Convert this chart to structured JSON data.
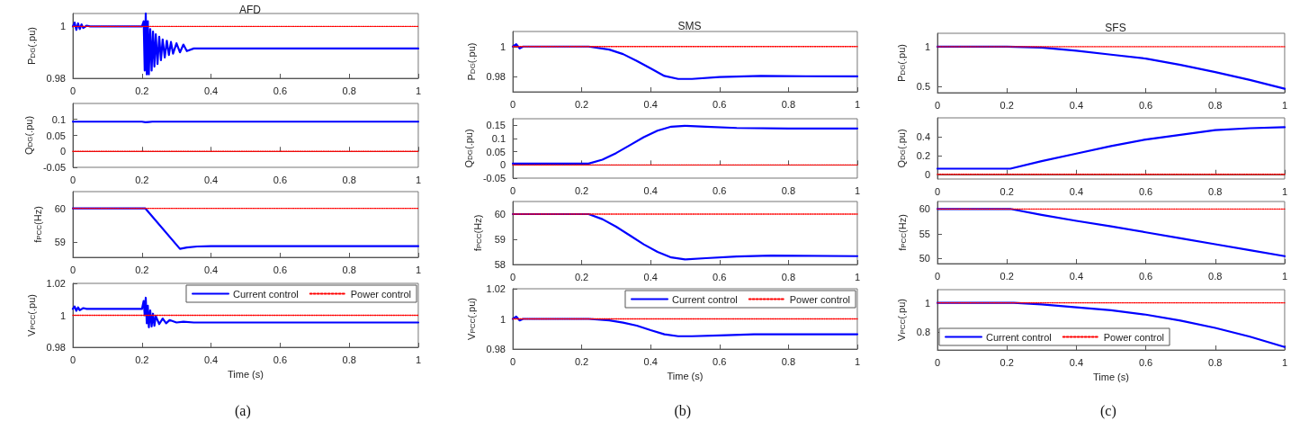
{
  "chart_data": [
    {
      "type": "line",
      "title": "AFD",
      "ylabel": "P$_{DG}$(.pu)",
      "xlim": [
        0,
        1
      ],
      "xticks": [
        0,
        0.2,
        0.4,
        0.6,
        0.8,
        1
      ],
      "ylim": [
        0.98,
        1.005
      ],
      "yticks": [
        0.98,
        1
      ],
      "series": [
        {
          "color": "#0000ff",
          "line_style": "solid",
          "x": [
            0,
            0.005,
            0.01,
            0.015,
            0.02,
            0.025,
            0.03,
            0.04,
            0.05,
            0.2,
            0.205,
            0.208,
            0.211,
            0.214,
            0.217,
            0.22,
            0.224,
            0.228,
            0.232,
            0.236,
            0.24,
            0.245,
            0.25,
            0.255,
            0.26,
            0.266,
            0.272,
            0.278,
            0.284,
            0.29,
            0.3,
            0.31,
            0.32,
            0.33,
            0.35,
            1
          ],
          "values": [
            1,
            1.0015,
            0.9987,
            1.0012,
            0.999,
            1.0008,
            0.9994,
            1.0003,
            1,
            1,
            1.002,
            0.983,
            1.005,
            0.9815,
            1.002,
            0.9815,
            0.999,
            0.983,
            0.998,
            0.9845,
            0.997,
            0.9855,
            0.996,
            0.987,
            0.995,
            0.988,
            0.9945,
            0.989,
            0.994,
            0.9895,
            0.9935,
            0.99,
            0.993,
            0.9905,
            0.9915,
            0.9915
          ]
        },
        {
          "color": "#ff0000",
          "line_style": "dotted",
          "x": [
            0,
            1
          ],
          "values": [
            1,
            1
          ]
        }
      ]
    },
    {
      "type": "line",
      "ylabel": "Q$_{DG}$(.pu)",
      "xlim": [
        0,
        1
      ],
      "xticks": [
        0,
        0.2,
        0.4,
        0.6,
        0.8,
        1
      ],
      "ylim": [
        -0.05,
        0.15
      ],
      "yticks": [
        -0.05,
        0,
        0.05,
        0.1
      ],
      "series": [
        {
          "color": "#0000ff",
          "line_style": "solid",
          "x": [
            0,
            0.2,
            0.21,
            0.22,
            0.23,
            1
          ],
          "values": [
            0.093,
            0.093,
            0.091,
            0.092,
            0.093,
            0.093
          ]
        },
        {
          "color": "#ff0000",
          "line_style": "dotted",
          "x": [
            0,
            1
          ],
          "values": [
            0,
            0
          ]
        }
      ]
    },
    {
      "type": "line",
      "ylabel": "f$_{PCC}$(Hz)",
      "xlim": [
        0,
        1
      ],
      "xticks": [
        0,
        0.2,
        0.4,
        0.6,
        0.8,
        1
      ],
      "ylim": [
        58.55,
        60.5
      ],
      "yticks": [
        59,
        60
      ],
      "series": [
        {
          "color": "#0000ff",
          "line_style": "solid",
          "x": [
            0,
            0.21,
            0.31,
            0.33,
            0.36,
            0.4,
            1
          ],
          "values": [
            60,
            60,
            58.8,
            58.84,
            58.87,
            58.88,
            58.88
          ]
        },
        {
          "color": "#ff0000",
          "line_style": "dotted",
          "x": [
            0,
            1
          ],
          "values": [
            60,
            60
          ]
        }
      ]
    },
    {
      "type": "line",
      "ylabel": "V$_{PCC}$(.pu)",
      "xlabel": "Time (s)",
      "annotations": [
        "(a)"
      ],
      "legend": "top right",
      "xlim": [
        0,
        1
      ],
      "xticks": [
        0,
        0.2,
        0.4,
        0.6,
        0.8,
        1
      ],
      "ylim": [
        0.98,
        1.02
      ],
      "yticks": [
        0.98,
        1,
        1.02
      ],
      "series": [
        {
          "name": "Current control",
          "color": "#0000ff",
          "line_style": "solid",
          "x": [
            0,
            0.005,
            0.01,
            0.015,
            0.02,
            0.03,
            0.04,
            0.2,
            0.205,
            0.208,
            0.211,
            0.214,
            0.217,
            0.22,
            0.224,
            0.228,
            0.232,
            0.236,
            0.24,
            0.25,
            0.26,
            0.27,
            0.28,
            0.3,
            0.32,
            0.35,
            1
          ],
          "values": [
            1.004,
            1.0055,
            1.0028,
            1.005,
            1.0032,
            1.0045,
            1.004,
            1.004,
            1.009,
            1.0,
            1.011,
            0.995,
            1.006,
            0.9925,
            1.003,
            0.993,
            1.001,
            0.9935,
            0.9995,
            0.9945,
            0.998,
            0.995,
            0.997,
            0.9955,
            0.996,
            0.9955,
            0.9955
          ]
        },
        {
          "name": "Power control",
          "color": "#ff0000",
          "line_style": "dotted",
          "x": [
            0,
            1
          ],
          "values": [
            1,
            1
          ]
        }
      ]
    },
    {
      "type": "line",
      "title": "SMS",
      "ylabel": "P$_{DG}$(.pu)",
      "xlim": [
        0,
        1
      ],
      "xticks": [
        0,
        0.2,
        0.4,
        0.6,
        0.8,
        1
      ],
      "ylim": [
        0.97,
        1.01
      ],
      "yticks": [
        0.98,
        1
      ],
      "series": [
        {
          "color": "#0000ff",
          "line_style": "solid",
          "x": [
            0,
            0.01,
            0.02,
            0.03,
            0.2,
            0.22,
            0.28,
            0.32,
            0.36,
            0.4,
            0.44,
            0.48,
            0.52,
            0.6,
            0.72,
            0.85,
            1
          ],
          "values": [
            1,
            1.0015,
            0.9988,
            1,
            1,
            1,
            0.998,
            0.995,
            0.9905,
            0.9855,
            0.9805,
            0.9785,
            0.9785,
            0.9798,
            0.9805,
            0.9803,
            0.9802
          ]
        },
        {
          "color": "#ff0000",
          "line_style": "dotted",
          "x": [
            0,
            1
          ],
          "values": [
            1,
            1
          ]
        }
      ]
    },
    {
      "type": "line",
      "ylabel": "Q$_{DG}$(.pu)",
      "xlim": [
        0,
        1
      ],
      "xticks": [
        0,
        0.2,
        0.4,
        0.6,
        0.8,
        1
      ],
      "ylim": [
        -0.05,
        0.175
      ],
      "yticks": [
        -0.05,
        0,
        0.05,
        0.1,
        0.15
      ],
      "series": [
        {
          "color": "#0000ff",
          "line_style": "solid",
          "x": [
            0,
            0.22,
            0.26,
            0.3,
            0.34,
            0.38,
            0.42,
            0.46,
            0.5,
            0.56,
            0.65,
            0.8,
            1
          ],
          "values": [
            0.005,
            0.005,
            0.02,
            0.045,
            0.075,
            0.105,
            0.13,
            0.145,
            0.148,
            0.145,
            0.14,
            0.138,
            0.138
          ]
        },
        {
          "color": "#ff0000",
          "line_style": "dotted",
          "x": [
            0,
            1
          ],
          "values": [
            0,
            0
          ]
        }
      ]
    },
    {
      "type": "line",
      "ylabel": "f$_{PCC}$(Hz)",
      "xlim": [
        0,
        1
      ],
      "xticks": [
        0,
        0.2,
        0.4,
        0.6,
        0.8,
        1
      ],
      "ylim": [
        58,
        60.5
      ],
      "yticks": [
        58,
        59,
        60
      ],
      "series": [
        {
          "color": "#0000ff",
          "line_style": "solid",
          "x": [
            0,
            0.22,
            0.26,
            0.3,
            0.34,
            0.38,
            0.42,
            0.46,
            0.5,
            0.56,
            0.65,
            0.75,
            1
          ],
          "values": [
            60,
            60,
            59.8,
            59.5,
            59.15,
            58.8,
            58.5,
            58.28,
            58.2,
            58.25,
            58.32,
            58.35,
            58.33
          ]
        },
        {
          "color": "#ff0000",
          "line_style": "dotted",
          "x": [
            0,
            1
          ],
          "values": [
            60,
            60
          ]
        }
      ]
    },
    {
      "type": "line",
      "ylabel": "V$_{PCC}$(.pu)",
      "xlabel": "Time (s)",
      "annotations": [
        "(b)"
      ],
      "legend": "top right",
      "xlim": [
        0,
        1
      ],
      "xticks": [
        0,
        0.2,
        0.4,
        0.6,
        0.8,
        1
      ],
      "ylim": [
        0.98,
        1.02
      ],
      "yticks": [
        0.98,
        1,
        1.02
      ],
      "series": [
        {
          "name": "Current control",
          "color": "#0000ff",
          "line_style": "solid",
          "x": [
            0,
            0.01,
            0.02,
            0.03,
            0.22,
            0.28,
            0.32,
            0.36,
            0.4,
            0.44,
            0.48,
            0.52,
            0.6,
            0.7,
            1
          ],
          "values": [
            1,
            1.0015,
            0.999,
            1,
            1,
            0.999,
            0.9975,
            0.9955,
            0.9925,
            0.9898,
            0.9885,
            0.9885,
            0.989,
            0.9898,
            0.9898
          ]
        },
        {
          "name": "Power control",
          "color": "#ff0000",
          "line_style": "dotted",
          "x": [
            0,
            1
          ],
          "values": [
            1,
            1
          ]
        }
      ]
    },
    {
      "type": "line",
      "title": "SFS",
      "ylabel": "P$_{DG}$(.pu)",
      "xlim": [
        0,
        1
      ],
      "xticks": [
        0,
        0.2,
        0.4,
        0.6,
        0.8,
        1
      ],
      "ylim": [
        0.42,
        1.17
      ],
      "yticks": [
        0.5,
        1
      ],
      "series": [
        {
          "color": "#0000ff",
          "line_style": "solid",
          "x": [
            0,
            0.2,
            0.3,
            0.4,
            0.5,
            0.6,
            0.7,
            0.8,
            0.9,
            1
          ],
          "values": [
            1,
            1,
            0.99,
            0.95,
            0.9,
            0.85,
            0.77,
            0.68,
            0.58,
            0.47
          ]
        },
        {
          "color": "#ff0000",
          "line_style": "dotted",
          "x": [
            0,
            1
          ],
          "values": [
            1,
            1
          ]
        }
      ]
    },
    {
      "type": "line",
      "ylabel": "Q$_{DG}$(.pu)",
      "xlim": [
        0,
        1
      ],
      "xticks": [
        0,
        0.2,
        0.4,
        0.6,
        0.8,
        1
      ],
      "ylim": [
        -0.05,
        0.6
      ],
      "yticks": [
        0,
        0.2,
        0.4
      ],
      "series": [
        {
          "color": "#0000ff",
          "line_style": "solid",
          "x": [
            0,
            0.21,
            0.3,
            0.4,
            0.5,
            0.6,
            0.7,
            0.8,
            0.9,
            1
          ],
          "values": [
            0.06,
            0.06,
            0.14,
            0.22,
            0.3,
            0.37,
            0.42,
            0.47,
            0.49,
            0.5
          ]
        },
        {
          "color": "#ff0000",
          "line_style": "dotted",
          "x": [
            0,
            1
          ],
          "values": [
            0,
            0
          ]
        }
      ]
    },
    {
      "type": "line",
      "ylabel": "f$_{PCC}$(Hz)",
      "xlim": [
        0,
        1
      ],
      "xticks": [
        0,
        0.2,
        0.4,
        0.6,
        0.8,
        1
      ],
      "ylim": [
        49,
        61.5
      ],
      "yticks": [
        50,
        55,
        60
      ],
      "series": [
        {
          "color": "#0000ff",
          "line_style": "solid",
          "x": [
            0,
            0.21,
            0.3,
            0.4,
            0.5,
            0.6,
            0.7,
            0.8,
            0.9,
            1
          ],
          "values": [
            60,
            60,
            58.8,
            57.6,
            56.5,
            55.3,
            54.1,
            52.9,
            51.7,
            50.5
          ]
        },
        {
          "color": "#ff0000",
          "line_style": "dotted",
          "x": [
            0,
            1
          ],
          "values": [
            60,
            60
          ]
        }
      ]
    },
    {
      "type": "line",
      "ylabel": "V$_{PCC}$(.pu)",
      "xlabel": "Time (s)",
      "annotations": [
        "(c)"
      ],
      "legend": "bottom left",
      "xlim": [
        0,
        1
      ],
      "xticks": [
        0,
        0.2,
        0.4,
        0.6,
        0.8,
        1
      ],
      "ylim": [
        0.68,
        1.09
      ],
      "yticks": [
        0.8,
        1
      ],
      "series": [
        {
          "name": "Current control",
          "color": "#0000ff",
          "line_style": "solid",
          "x": [
            0,
            0.22,
            0.3,
            0.4,
            0.5,
            0.6,
            0.7,
            0.8,
            0.9,
            1
          ],
          "values": [
            1,
            1,
            0.99,
            0.97,
            0.95,
            0.92,
            0.88,
            0.83,
            0.77,
            0.7
          ]
        },
        {
          "name": "Power control",
          "color": "#ff0000",
          "line_style": "dotted",
          "x": [
            0,
            1
          ],
          "values": [
            1,
            1
          ]
        }
      ]
    }
  ]
}
